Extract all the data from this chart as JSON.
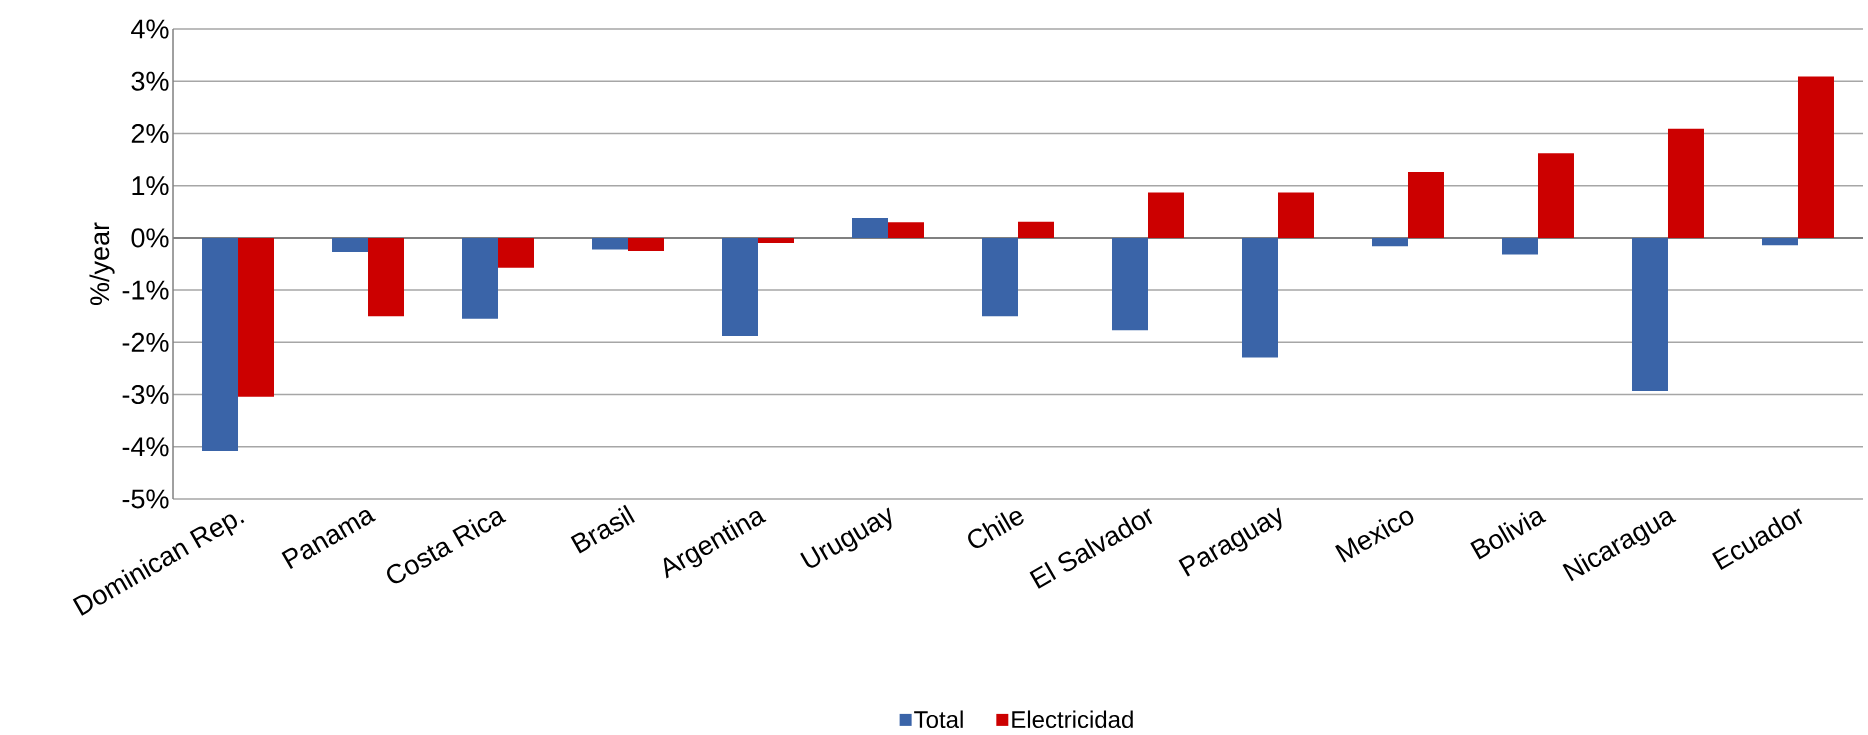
{
  "chart_data": {
    "type": "bar",
    "ylabel": "%/year",
    "categories": [
      "Dominican Rep.",
      "Panama",
      "Costa Rica",
      "Brasil",
      "Argentina",
      "Uruguay",
      "Chile",
      "El Salvador",
      "Paraguay",
      "Mexico",
      "Bolivia",
      "Nicaragua",
      "Ecuador"
    ],
    "series": [
      {
        "name": "Total",
        "color": "#3a64a8",
        "values": [
          -4.08,
          -0.27,
          -1.55,
          -0.22,
          -1.88,
          0.38,
          -1.5,
          -1.77,
          -2.29,
          -0.16,
          -0.32,
          -2.93,
          -0.14
        ]
      },
      {
        "name": "Electricidad",
        "color": "#cc0000",
        "values": [
          -3.04,
          -1.5,
          -0.57,
          -0.25,
          -0.1,
          0.3,
          0.31,
          0.87,
          0.87,
          1.26,
          1.62,
          2.09,
          3.09
        ]
      }
    ],
    "ylim": [
      -5,
      4
    ],
    "yticks": [
      {
        "value": -5,
        "label": "-5%"
      },
      {
        "value": -4,
        "label": "-4%"
      },
      {
        "value": -3,
        "label": "-3%"
      },
      {
        "value": -2,
        "label": "-2%"
      },
      {
        "value": -1,
        "label": "-1%"
      },
      {
        "value": 0,
        "label": "0%"
      },
      {
        "value": 1,
        "label": "1%"
      },
      {
        "value": 2,
        "label": "2%"
      },
      {
        "value": 3,
        "label": "3%"
      },
      {
        "value": 4,
        "label": "4%"
      }
    ],
    "grid": "y",
    "legend": "bottom"
  }
}
